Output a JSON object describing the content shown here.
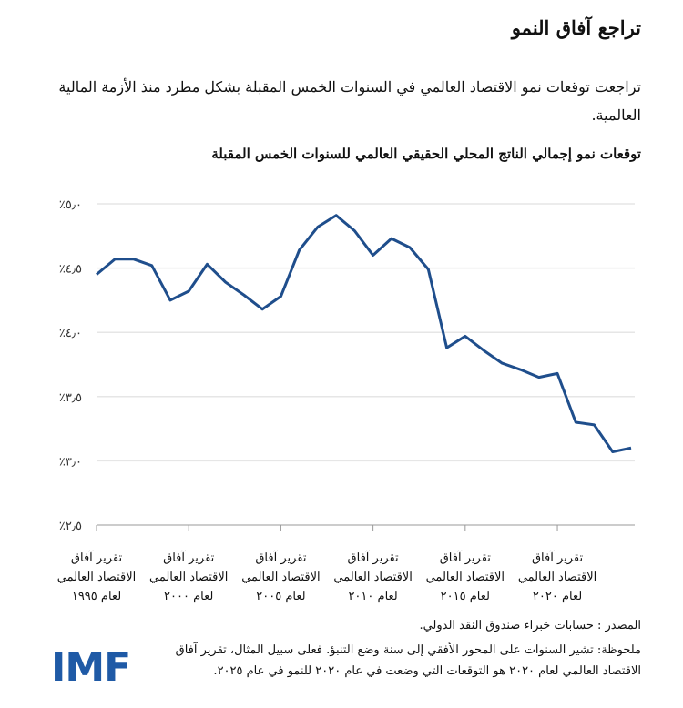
{
  "title": "تراجع آفاق النمو",
  "subtitle": "تراجعت توقعات نمو الاقتصاد العالمي في السنوات الخمس المقبلة بشكل مطرد منذ الأزمة المالية العالمية.",
  "chart_data": {
    "type": "line",
    "title": "توقعات نمو إجمالي الناتج المحلي الحقيقي العالمي للسنوات الخمس المقبلة",
    "x": [
      1995,
      1996,
      1997,
      1998,
      1999,
      2000,
      2001,
      2002,
      2003,
      2004,
      2005,
      2006,
      2007,
      2008,
      2009,
      2010,
      2011,
      2012,
      2013,
      2014,
      2015,
      2016,
      2017,
      2018,
      2019,
      2020,
      2021,
      2022,
      2023,
      2024
    ],
    "series": [
      {
        "values": [
          4.45,
          4.57,
          4.57,
          4.52,
          4.25,
          4.32,
          4.53,
          4.39,
          4.29,
          4.18,
          4.28,
          4.64,
          4.82,
          4.91,
          4.79,
          4.6,
          4.73,
          4.66,
          4.49,
          3.88,
          3.97,
          3.86,
          3.76,
          3.71,
          3.65,
          3.68,
          3.3,
          3.28,
          3.07,
          3.1
        ],
        "color": "#1f4e8c"
      }
    ],
    "ylim": [
      2.5,
      5.0
    ],
    "yticks": [
      2.5,
      3.0,
      3.5,
      4.0,
      4.5,
      5.0
    ],
    "ytick_labels": [
      "٪٢٫٥",
      "٪٣٫٠",
      "٪٣٫٥",
      "٪٤٫٠",
      "٪٤٫٥",
      "٪٥٫٠"
    ],
    "xticks": [
      1995,
      2000,
      2005,
      2010,
      2015,
      2020
    ],
    "xtick_labels": [
      [
        "تقرير آفاق",
        "الاقتصاد العالمي",
        "لعام ١٩٩٥"
      ],
      [
        "تقرير آفاق",
        "الاقتصاد العالمي",
        "لعام ٢٠٠٠"
      ],
      [
        "تقرير آفاق",
        "الاقتصاد العالمي",
        "لعام ٢٠٠٥"
      ],
      [
        "تقرير آفاق",
        "الاقتصاد العالمي",
        "لعام ٢٠١٠"
      ],
      [
        "تقرير آفاق",
        "الاقتصاد العالمي",
        "لعام ٢٠١٥"
      ],
      [
        "تقرير آفاق",
        "الاقتصاد العالمي",
        "لعام ٢٠٢٠"
      ]
    ],
    "grid": true
  },
  "source": "المصدر : حسابات خبراء صندوق النقد الدولي.",
  "note": "ملحوظة: تشير السنوات على المحور الأفقي إلى سنة وضع التنبؤ. فعلى سبيل المثال، تقرير آفاق الاقتصاد العالمي لعام ٢٠٢٠ هو التوقعات التي وضعت في عام ٢٠٢٠ للنمو في عام ٢٠٢٥.",
  "logo": "IMF",
  "colors": {
    "line": "#1f4e8c",
    "logo": "#1f5aa6",
    "grid": "#e6e6e6"
  }
}
